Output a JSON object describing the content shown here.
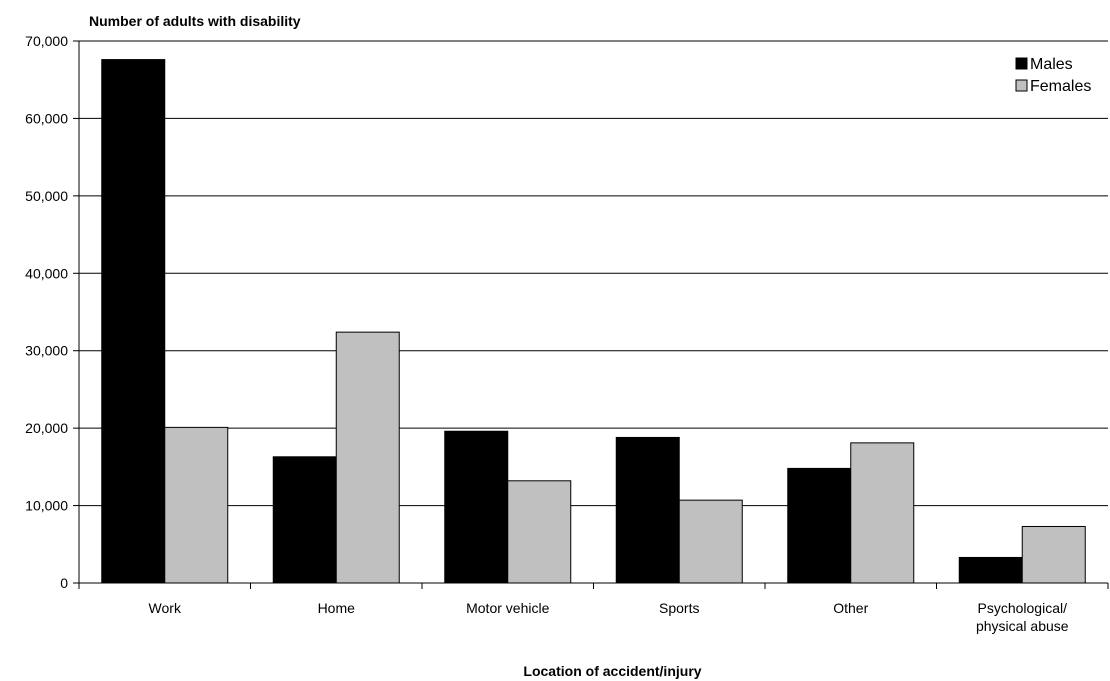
{
  "chart_data": {
    "type": "bar",
    "ylabel": "Number of adults with disability",
    "xlabel": "Location of accident/injury",
    "categories": [
      [
        "Work"
      ],
      [
        "Home"
      ],
      [
        "Motor vehicle"
      ],
      [
        "Sports"
      ],
      [
        "Other"
      ],
      [
        "Psychological/",
        "physical abuse"
      ]
    ],
    "series": [
      {
        "name": "Males",
        "color": "#000000",
        "values": [
          67600,
          16300,
          19600,
          18800,
          14800,
          3300
        ]
      },
      {
        "name": "Females",
        "color": "#c0c0c0",
        "values": [
          20100,
          32400,
          13200,
          10700,
          18100,
          7300
        ]
      }
    ],
    "ylim": [
      0,
      70000
    ],
    "yticks": [
      0,
      10000,
      20000,
      30000,
      40000,
      50000,
      60000,
      70000
    ],
    "ytick_labels": [
      "0",
      "10,000",
      "20,000",
      "30,000",
      "40,000",
      "50,000",
      "60,000",
      "70,000"
    ],
    "grid": true,
    "legend_position": "top-right"
  }
}
